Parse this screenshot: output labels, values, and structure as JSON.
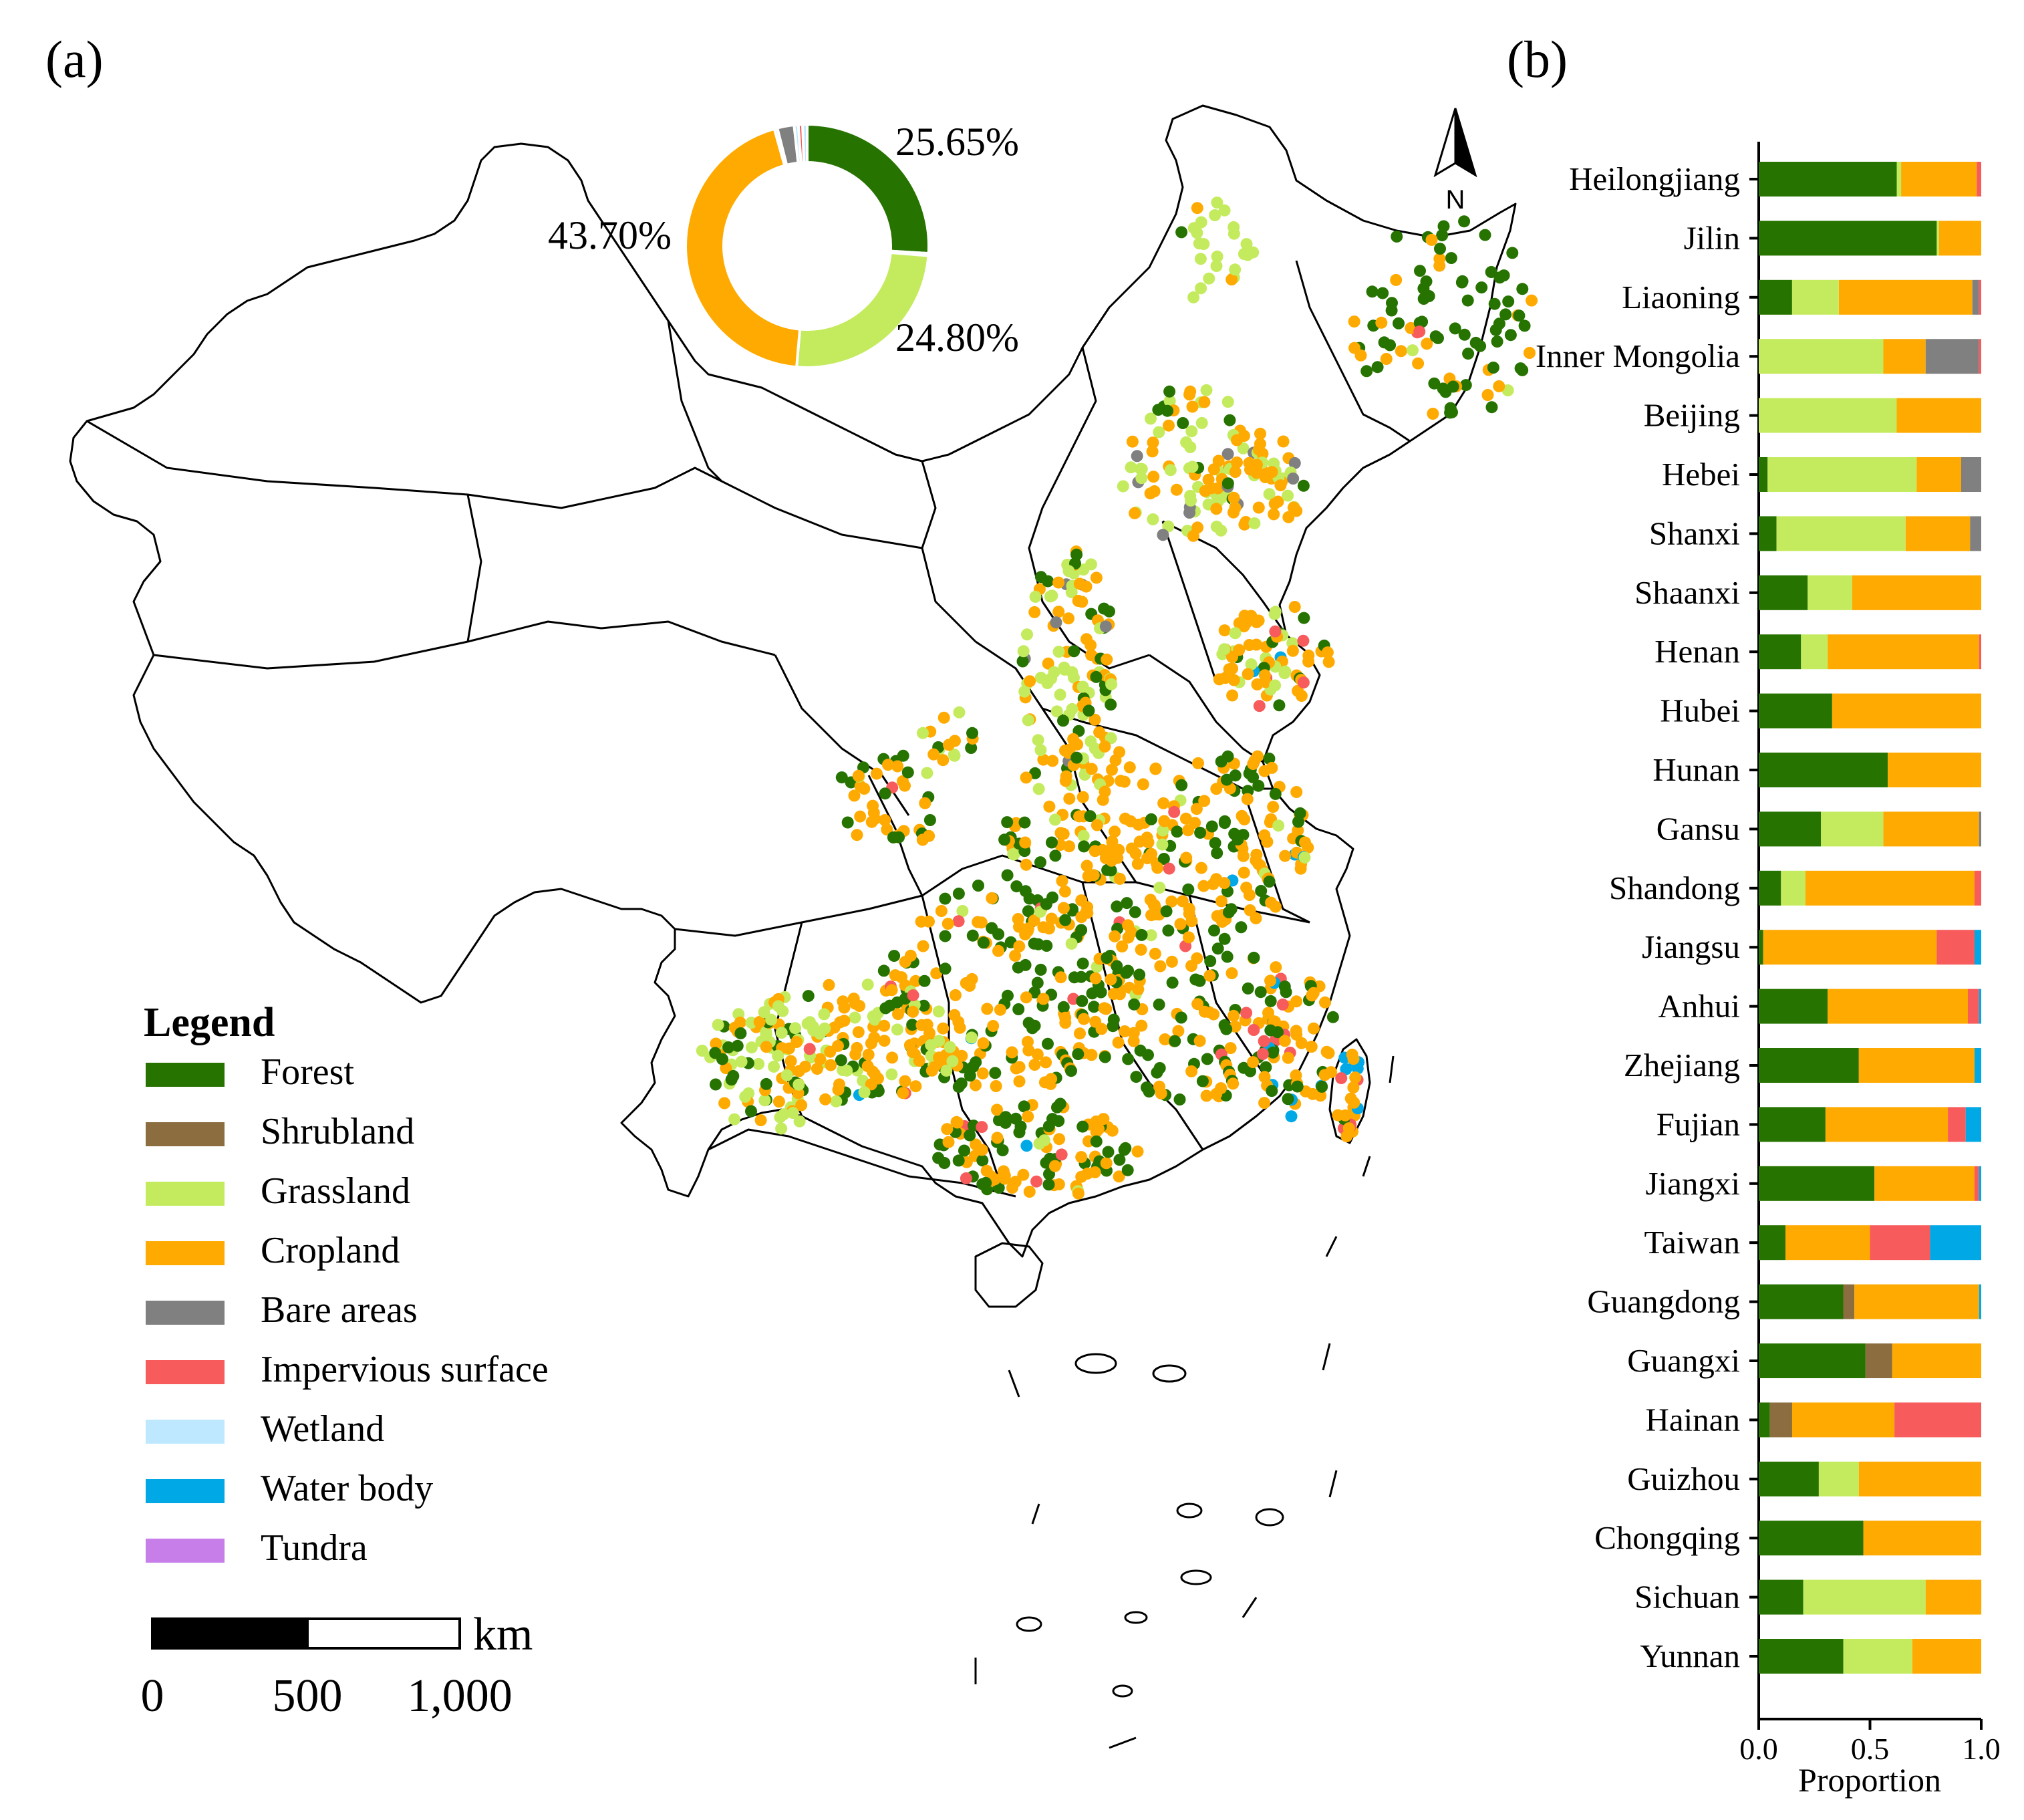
{
  "panels": {
    "a": "(a)",
    "b": "(b)"
  },
  "colors": {
    "Forest": "#267300",
    "Shrubland": "#8B6D3F",
    "Grassland": "#C4EB5E",
    "Cropland": "#FFAA00",
    "Bare areas": "#808080",
    "Impervious surface": "#F75B5B",
    "Wetland": "#BEE8FF",
    "Water body": "#00A9E6",
    "Tundra": "#C87EE8"
  },
  "legend": {
    "title": "Legend",
    "items": [
      "Forest",
      "Shrubland",
      "Grassland",
      "Cropland",
      "Bare areas",
      "Impervious surface",
      "Wetland",
      "Water body",
      "Tundra"
    ]
  },
  "donut": {
    "slices": [
      {
        "class": "Forest",
        "value": 25.65,
        "label": "25.65%"
      },
      {
        "class": "Wetland",
        "value": 0.3,
        "label": ""
      },
      {
        "class": "Grassland",
        "value": 24.8,
        "label": "24.80%"
      },
      {
        "class": "Cropland",
        "value": 43.7,
        "label": "43.70%"
      },
      {
        "class": "Wetland",
        "value": 0.4,
        "label": ""
      },
      {
        "class": "Bare areas",
        "value": 2.2,
        "label": ""
      },
      {
        "class": "Wetland",
        "value": 0.55,
        "label": ""
      },
      {
        "class": "Impervious surface",
        "value": 0.55,
        "label": ""
      },
      {
        "class": "Wetland",
        "value": 0.6,
        "label": ""
      }
    ]
  },
  "scale_bar": {
    "unit": "km",
    "ticks": [
      "0",
      "500",
      "1,000"
    ]
  },
  "north_arrow": {
    "label": "N"
  },
  "chart_data": {
    "type": "bar",
    "orientation": "horizontal-stacked",
    "xlabel": "Proportion",
    "xlim": [
      0,
      1
    ],
    "xticks": [
      "0.0",
      "0.5",
      "1.0"
    ],
    "categories": [
      "Heilongjiang",
      "Jilin",
      "Liaoning",
      "Inner Mongolia",
      "Beijing",
      "Hebei",
      "Shanxi",
      "Shaanxi",
      "Henan",
      "Hubei",
      "Hunan",
      "Gansu",
      "Shandong",
      "Jiangsu",
      "Anhui",
      "Zhejiang",
      "Fujian",
      "Jiangxi",
      "Taiwan",
      "Guangdong",
      "Guangxi",
      "Hainan",
      "Guizhou",
      "Chongqing",
      "Sichuan",
      "Yunnan"
    ],
    "series": [
      {
        "name": "Forest",
        "values": [
          0.62,
          0.8,
          0.15,
          0.0,
          0.0,
          0.04,
          0.08,
          0.22,
          0.19,
          0.33,
          0.58,
          0.28,
          0.1,
          0.02,
          0.31,
          0.45,
          0.3,
          0.52,
          0.12,
          0.38,
          0.48,
          0.05,
          0.27,
          0.47,
          0.2,
          0.38
        ]
      },
      {
        "name": "Shrubland",
        "values": [
          0.0,
          0.0,
          0.0,
          0.0,
          0.0,
          0.0,
          0.0,
          0.0,
          0.0,
          0.0,
          0.0,
          0.0,
          0.0,
          0.0,
          0.0,
          0.0,
          0.0,
          0.0,
          0.0,
          0.05,
          0.12,
          0.1,
          0.0,
          0.0,
          0.0,
          0.0
        ]
      },
      {
        "name": "Grassland",
        "values": [
          0.02,
          0.01,
          0.21,
          0.56,
          0.62,
          0.67,
          0.58,
          0.2,
          0.12,
          0.0,
          0.0,
          0.28,
          0.11,
          0.0,
          0.0,
          0.0,
          0.0,
          0.0,
          0.0,
          0.0,
          0.0,
          0.0,
          0.18,
          0.0,
          0.55,
          0.31
        ]
      },
      {
        "name": "Cropland",
        "values": [
          0.34,
          0.19,
          0.6,
          0.19,
          0.38,
          0.2,
          0.29,
          0.58,
          0.68,
          0.67,
          0.42,
          0.43,
          0.76,
          0.78,
          0.63,
          0.52,
          0.55,
          0.45,
          0.38,
          0.56,
          0.4,
          0.46,
          0.55,
          0.53,
          0.25,
          0.31
        ]
      },
      {
        "name": "Bare areas",
        "values": [
          0.0,
          0.0,
          0.03,
          0.24,
          0.0,
          0.09,
          0.05,
          0.0,
          0.0,
          0.0,
          0.0,
          0.01,
          0.0,
          0.0,
          0.0,
          0.0,
          0.0,
          0.0,
          0.0,
          0.0,
          0.0,
          0.0,
          0.0,
          0.0,
          0.0,
          0.0
        ]
      },
      {
        "name": "Impervious surface",
        "values": [
          0.02,
          0.0,
          0.01,
          0.01,
          0.0,
          0.0,
          0.0,
          0.0,
          0.01,
          0.0,
          0.0,
          0.0,
          0.03,
          0.17,
          0.05,
          0.0,
          0.08,
          0.02,
          0.27,
          0.0,
          0.0,
          0.39,
          0.0,
          0.0,
          0.0,
          0.0
        ]
      },
      {
        "name": "Water body",
        "values": [
          0.0,
          0.0,
          0.0,
          0.0,
          0.0,
          0.0,
          0.0,
          0.0,
          0.0,
          0.0,
          0.0,
          0.0,
          0.0,
          0.03,
          0.01,
          0.03,
          0.07,
          0.01,
          0.23,
          0.01,
          0.0,
          0.0,
          0.0,
          0.0,
          0.0,
          0.0
        ]
      }
    ]
  }
}
